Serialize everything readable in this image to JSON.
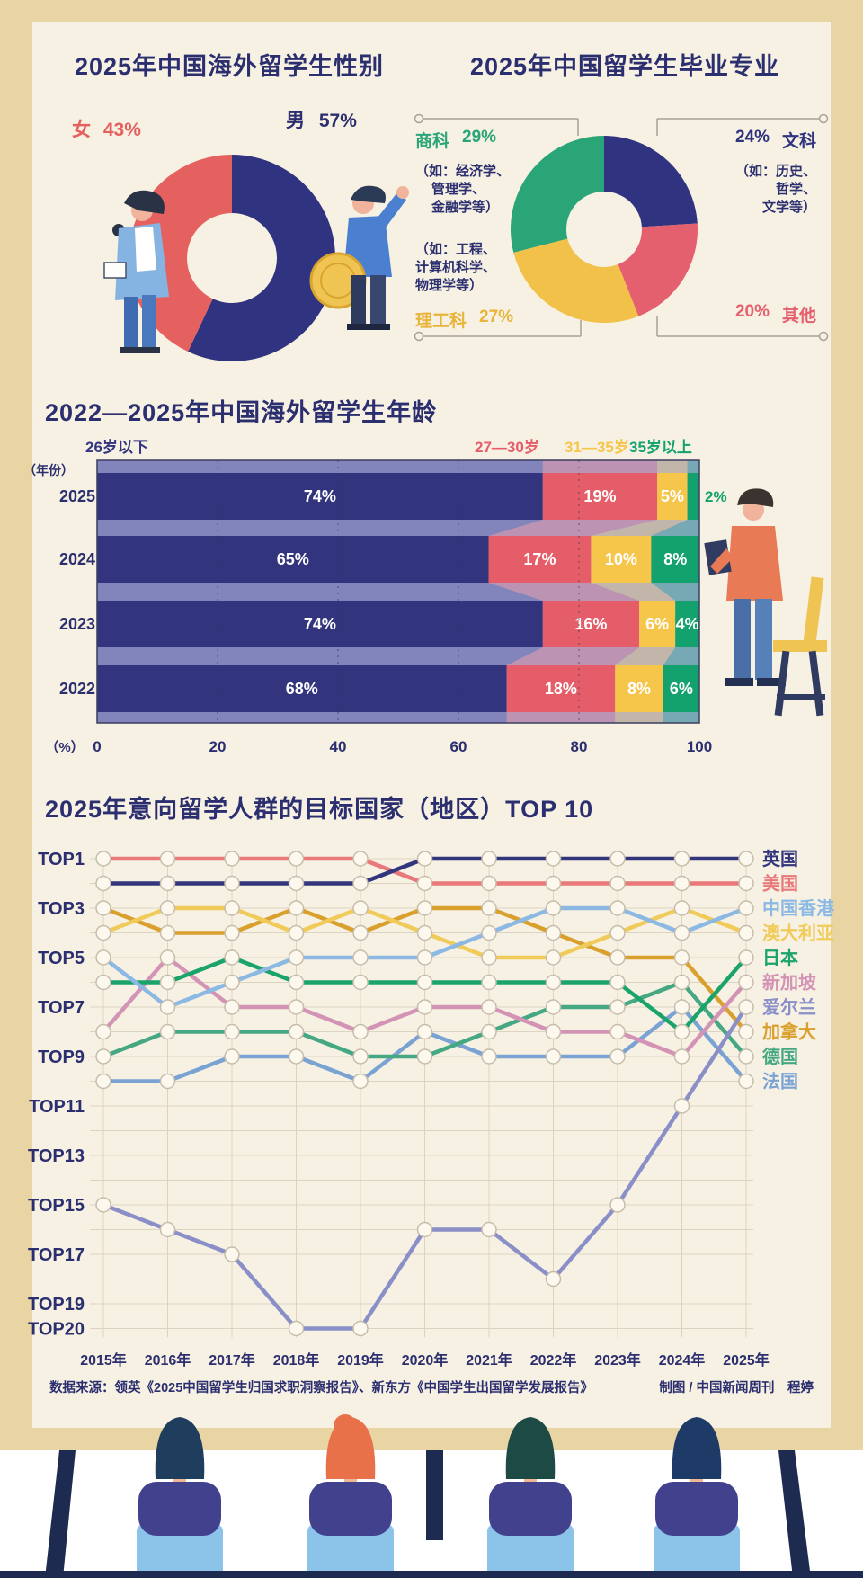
{
  "page": {
    "frame_color": "#e9d4a4",
    "board_color": "#f7f1e3",
    "accent_navy": "#2b2e6f",
    "bottom_strip_color": "#1d2b50"
  },
  "chart_data": [
    {
      "id": "gender",
      "type": "pie",
      "donut": true,
      "title": "2025年中国海外留学生性别",
      "slices": [
        {
          "label": "男",
          "value": 57,
          "color": "#30337f"
        },
        {
          "label": "女",
          "value": 43,
          "color": "#e5615f"
        }
      ]
    },
    {
      "id": "major",
      "type": "pie",
      "donut": true,
      "title": "2025年中国留学生毕业专业",
      "slices": [
        {
          "label": "文科",
          "value": 24,
          "color": "#30337f"
        },
        {
          "label": "其他",
          "value": 20,
          "color": "#e5606e"
        },
        {
          "label": "理工科",
          "value": 27,
          "color": "#f2c149"
        },
        {
          "label": "商科",
          "value": 29,
          "color": "#2aa578"
        }
      ]
    },
    {
      "id": "age",
      "type": "bar-stacked-horizontal",
      "title": "2022—2025年中国海外留学生年龄",
      "y_axis_label": "（年份）",
      "x_axis_label": "（%）",
      "categories": [
        "2025",
        "2024",
        "2023",
        "2022"
      ],
      "series": [
        {
          "name": "26岁以下",
          "color": "#32357e",
          "values": [
            74,
            65,
            74,
            68
          ]
        },
        {
          "name": "27—30岁",
          "color": "#e55d68",
          "values": [
            19,
            17,
            16,
            18
          ]
        },
        {
          "name": "31—35岁",
          "color": "#f5c64a",
          "values": [
            5,
            10,
            6,
            8
          ]
        },
        {
          "name": "35岁以上",
          "color": "#13a26d",
          "values": [
            2,
            8,
            4,
            6
          ]
        }
      ],
      "x_ticks": [
        0,
        20,
        40,
        60,
        80,
        100
      ],
      "xlim": [
        0,
        100
      ],
      "plot_bg": "#a9aed8"
    },
    {
      "id": "rank",
      "type": "bump",
      "title": "2025年意向留学人群的目标国家（地区）TOP 10",
      "years": [
        "2015年",
        "2016年",
        "2017年",
        "2018年",
        "2019年",
        "2020年",
        "2021年",
        "2022年",
        "2023年",
        "2024年",
        "2025年"
      ],
      "rank_labels": [
        {
          "label": "TOP1",
          "rank": 1
        },
        {
          "label": "TOP3",
          "rank": 3
        },
        {
          "label": "TOP5",
          "rank": 5
        },
        {
          "label": "TOP7",
          "rank": 7
        },
        {
          "label": "TOP9",
          "rank": 9
        },
        {
          "label": "TOP11",
          "rank": 11
        },
        {
          "label": "TOP13",
          "rank": 13
        },
        {
          "label": "TOP15",
          "rank": 15
        },
        {
          "label": "TOP17",
          "rank": 17
        },
        {
          "label": "TOP19",
          "rank": 19
        },
        {
          "label": "TOP20",
          "rank": 20
        }
      ],
      "max_rank": 20,
      "series": [
        {
          "name": "英国",
          "color": "#33357d",
          "ranks": [
            2,
            2,
            2,
            2,
            2,
            1,
            1,
            1,
            1,
            1,
            1
          ]
        },
        {
          "name": "美国",
          "color": "#e8787a",
          "ranks": [
            1,
            1,
            1,
            1,
            1,
            2,
            2,
            2,
            2,
            2,
            2
          ]
        },
        {
          "name": "中国香港",
          "color": "#8cb8e4",
          "ranks": [
            5,
            7,
            6,
            5,
            5,
            5,
            4,
            3,
            3,
            4,
            3
          ]
        },
        {
          "name": "澳大利亚",
          "color": "#f0cb5a",
          "ranks": [
            4,
            3,
            3,
            4,
            3,
            4,
            5,
            5,
            4,
            3,
            4
          ]
        },
        {
          "name": "日本",
          "color": "#1ba36c",
          "ranks": [
            6,
            6,
            5,
            6,
            6,
            6,
            6,
            6,
            6,
            8,
            5
          ]
        },
        {
          "name": "新加坡",
          "color": "#d393b5",
          "ranks": [
            8,
            5,
            7,
            7,
            8,
            7,
            7,
            8,
            8,
            9,
            6
          ]
        },
        {
          "name": "爱尔兰",
          "color": "#8a8fc8",
          "ranks": [
            15,
            16,
            17,
            20,
            20,
            16,
            16,
            18,
            15,
            11,
            7
          ]
        },
        {
          "name": "加拿大",
          "color": "#d9a02e",
          "ranks": [
            3,
            4,
            4,
            3,
            4,
            3,
            3,
            4,
            5,
            5,
            8
          ]
        },
        {
          "name": "德国",
          "color": "#45a883",
          "ranks": [
            9,
            8,
            8,
            8,
            9,
            9,
            8,
            7,
            7,
            6,
            9
          ]
        },
        {
          "name": "法国",
          "color": "#7aa3d4",
          "ranks": [
            10,
            10,
            9,
            9,
            10,
            8,
            9,
            9,
            9,
            7,
            10
          ]
        }
      ]
    }
  ],
  "gender_labels": {
    "female_name": "女",
    "female_value": "43%",
    "female_color": "#e5615f",
    "male_name": "男",
    "male_value": "57%",
    "male_color": "#2b2e6f"
  },
  "major_labels": {
    "business": {
      "name": "商科",
      "value": "29%",
      "color": "#2aa578",
      "lines": [
        "（如：经济学、",
        "管理学、",
        "金融学等）"
      ]
    },
    "liberal": {
      "value": "24%",
      "name": "文科",
      "color": "#30337f",
      "lines": [
        "（如：历史、",
        "哲学、",
        "文学等）"
      ]
    },
    "stem": {
      "name": "理工科",
      "value": "27%",
      "color": "#e8b43a",
      "lines": [
        "（如：工程、",
        "计算机科学、",
        "物理学等）"
      ]
    },
    "other": {
      "value": "20%",
      "name": "其他",
      "color": "#e5606e"
    }
  },
  "footer": {
    "source": "数据来源：领英《2025中国留学生归国求职洞察报告》、新东方《中国学生出国留学发展报告》",
    "credit": "制图 / 中国新闻周刊　程婷"
  }
}
